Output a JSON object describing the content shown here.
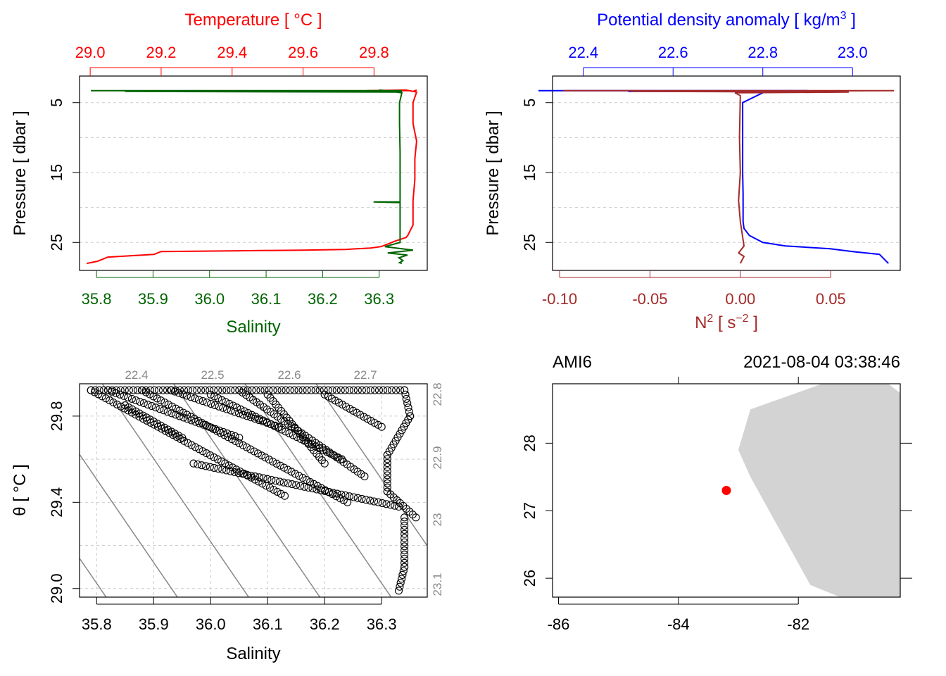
{
  "chart_data": [
    {
      "type": "line",
      "panel": "temperature-salinity-profile",
      "top_axis": {
        "label": "Temperature [ °C ]",
        "ticks": [
          "29.0",
          "29.2",
          "29.4",
          "29.6",
          "29.8"
        ],
        "range": [
          28.97,
          29.95
        ],
        "color": "#ff0000"
      },
      "bottom_axis": {
        "label": "Salinity",
        "ticks": [
          "35.8",
          "35.9",
          "36.0",
          "36.1",
          "36.2",
          "36.3"
        ],
        "range": [
          35.77,
          36.385
        ],
        "color": "#006400"
      },
      "left_axis": {
        "label": "Pressure [ dbar ]",
        "ticks": [
          "5",
          "15",
          "25"
        ],
        "range": [
          1.2,
          29.0
        ],
        "reversed": true
      },
      "series": [
        {
          "name": "Temperature",
          "color": "#ff0000",
          "x": [
            29.92,
            29.91,
            29.89,
            29.78,
            29.9,
            29.92,
            29.91,
            29.91,
            29.92,
            29.915,
            29.915,
            29.91,
            29.91,
            29.91,
            29.9,
            29.895,
            29.89,
            29.86,
            29.84,
            29.82,
            29.79,
            29.72,
            29.6,
            29.4,
            29.2,
            29.18,
            29.05,
            29.02,
            28.99
          ],
          "y": [
            3.2,
            3.4,
            3.2,
            3.3,
            3.3,
            3.5,
            5.0,
            8.0,
            10.5,
            13.0,
            16.0,
            19.0,
            20.5,
            22.5,
            23.5,
            24.0,
            24.3,
            24.8,
            25.2,
            25.6,
            25.8,
            26.0,
            26.1,
            26.2,
            26.3,
            26.7,
            27.1,
            27.7,
            28.0
          ]
        },
        {
          "name": "Salinity",
          "color": "#006400",
          "x": [
            35.79,
            36.34,
            35.85,
            36.34,
            36.3,
            36.34,
            36.336,
            36.336,
            36.337,
            36.337,
            36.337,
            36.337,
            36.29,
            36.337,
            36.337,
            36.337,
            36.31,
            36.36,
            36.315,
            36.35,
            36.335,
            36.342,
            36.336,
            36.34
          ],
          "y": [
            3.3,
            3.3,
            3.4,
            3.5,
            3.2,
            3.6,
            5.0,
            8.0,
            12.0,
            16.0,
            19.0,
            19.2,
            19.2,
            19.3,
            22.0,
            25.0,
            25.6,
            26.1,
            26.5,
            26.8,
            27.2,
            27.6,
            27.9,
            28.0
          ]
        }
      ]
    },
    {
      "type": "line",
      "panel": "density-n2-profile",
      "top_axis": {
        "label": "Potential density anomaly [ kg/m³ ]",
        "label_parts": {
          "text": "Potential density anomaly [ kg/m",
          "superscript": "3",
          "close": " ]"
        },
        "ticks": [
          "22.4",
          "22.6",
          "22.8",
          "23.0"
        ],
        "range": [
          22.3,
          23.1
        ],
        "color": "#0000ff"
      },
      "bottom_axis": {
        "label": "N² [ s⁻² ]",
        "label_parts": {
          "text": "N",
          "superscript": "2",
          "middle": " [ s",
          "superscript2": "−2",
          "close": " ]"
        },
        "ticks": [
          "-0.10",
          "-0.05",
          "0.00",
          "0.05"
        ],
        "range": [
          -0.1,
          0.09
        ],
        "color": "#a52a2a"
      },
      "left_axis": {
        "label": "Pressure [ dbar ]",
        "ticks": [
          "5",
          "15",
          "25"
        ],
        "range": [
          1.2,
          29.0
        ],
        "reversed": true
      },
      "series": [
        {
          "name": "Potential density anomaly",
          "color": "#0000ff",
          "x": [
            22.3,
            22.9,
            22.5,
            22.75,
            22.8,
            22.755,
            22.755,
            22.755,
            22.756,
            22.756,
            22.756,
            22.756,
            22.756,
            22.758,
            22.77,
            22.8,
            22.85,
            22.95,
            23.0,
            23.06,
            23.08
          ],
          "y": [
            3.3,
            3.3,
            3.4,
            3.4,
            3.6,
            5.0,
            10.0,
            15.0,
            18.0,
            19.0,
            19.3,
            21.0,
            22.0,
            23.0,
            24.0,
            25.0,
            25.5,
            25.9,
            26.3,
            26.7,
            28.0
          ]
        },
        {
          "name": "N2",
          "color": "#a52a2a",
          "x": [
            -0.098,
            0.085,
            -0.06,
            0.06,
            -0.003,
            0.0,
            -0.0005,
            0.0,
            -0.001,
            0.0,
            0.002,
            -0.001,
            0.002,
            0.0
          ],
          "y": [
            3.3,
            3.3,
            3.4,
            3.5,
            3.6,
            4.0,
            10.0,
            15.0,
            19.0,
            22.0,
            25.5,
            26.5,
            27.0,
            28.0
          ]
        }
      ]
    },
    {
      "type": "scatter",
      "panel": "ts-diagram",
      "xlabel": "Salinity",
      "ylabel": "θ [ °C ]",
      "xticks": [
        "35.8",
        "35.9",
        "36.0",
        "36.1",
        "36.2",
        "36.3"
      ],
      "yticks": [
        "29.0",
        "29.4",
        "29.8"
      ],
      "xlim": [
        35.77,
        36.38
      ],
      "ylim": [
        28.96,
        29.95
      ],
      "isopycnal_labels_top": [
        "22.4",
        "22.5",
        "22.6",
        "22.7"
      ],
      "isopycnal_labels_right": [
        "22.8",
        "22.9",
        "23",
        "23.1"
      ],
      "segments": [
        {
          "from": [
            35.79,
            29.92
          ],
          "to": [
            36.13,
            29.43
          ]
        },
        {
          "from": [
            35.82,
            29.92
          ],
          "to": [
            36.05,
            29.7
          ]
        },
        {
          "from": [
            35.88,
            29.92
          ],
          "to": [
            36.24,
            29.4
          ]
        },
        {
          "from": [
            35.93,
            29.92
          ],
          "to": [
            36.12,
            29.75
          ]
        },
        {
          "from": [
            36.0,
            29.9
          ],
          "to": [
            36.23,
            29.6
          ]
        },
        {
          "from": [
            36.05,
            29.92
          ],
          "to": [
            36.27,
            29.52
          ]
        },
        {
          "from": [
            36.1,
            29.9
          ],
          "to": [
            36.2,
            29.58
          ]
        },
        {
          "from": [
            36.2,
            29.9
          ],
          "to": [
            36.3,
            29.75
          ]
        },
        {
          "from": [
            35.85,
            29.85
          ],
          "to": [
            35.95,
            29.7
          ]
        },
        {
          "from": [
            35.97,
            29.58
          ],
          "to": [
            36.33,
            29.38
          ]
        },
        {
          "from": [
            36.34,
            29.92
          ],
          "to": [
            36.35,
            29.8
          ]
        },
        {
          "from": [
            36.35,
            29.8
          ],
          "to": [
            36.31,
            29.62
          ]
        },
        {
          "from": [
            36.31,
            29.62
          ],
          "to": [
            36.31,
            29.45
          ]
        },
        {
          "from": [
            36.31,
            29.45
          ],
          "to": [
            36.36,
            29.33
          ]
        },
        {
          "from": [
            36.34,
            29.33
          ],
          "to": [
            36.34,
            29.1
          ]
        },
        {
          "from": [
            36.34,
            29.1
          ],
          "to": [
            36.33,
            28.99
          ]
        },
        {
          "from": [
            35.79,
            29.92
          ],
          "to": [
            36.34,
            29.92
          ]
        }
      ]
    },
    {
      "type": "scatter",
      "panel": "station-map",
      "station_name": "AMI6",
      "timestamp": "2021-08-04 03:38:46",
      "xticks": [
        "-86",
        "-84",
        "-82"
      ],
      "yticks": [
        "26",
        "27",
        "28"
      ],
      "xlim": [
        -86.1,
        -80.3
      ],
      "ylim": [
        25.72,
        28.88
      ],
      "station": {
        "lon": -83.2,
        "lat": 27.3,
        "color": "#ff0000"
      },
      "land": [
        [
          -81.6,
          28.88
        ],
        [
          -80.5,
          28.88
        ],
        [
          -80.1,
          28.6
        ],
        [
          -80.3,
          28.0
        ],
        [
          -80.3,
          27.0
        ],
        [
          -80.3,
          25.72
        ],
        [
          -81.3,
          25.72
        ],
        [
          -81.8,
          25.9
        ],
        [
          -82.8,
          27.5
        ],
        [
          -83.0,
          27.9
        ],
        [
          -82.8,
          28.5
        ]
      ],
      "land_color": "#d3d3d3"
    }
  ]
}
